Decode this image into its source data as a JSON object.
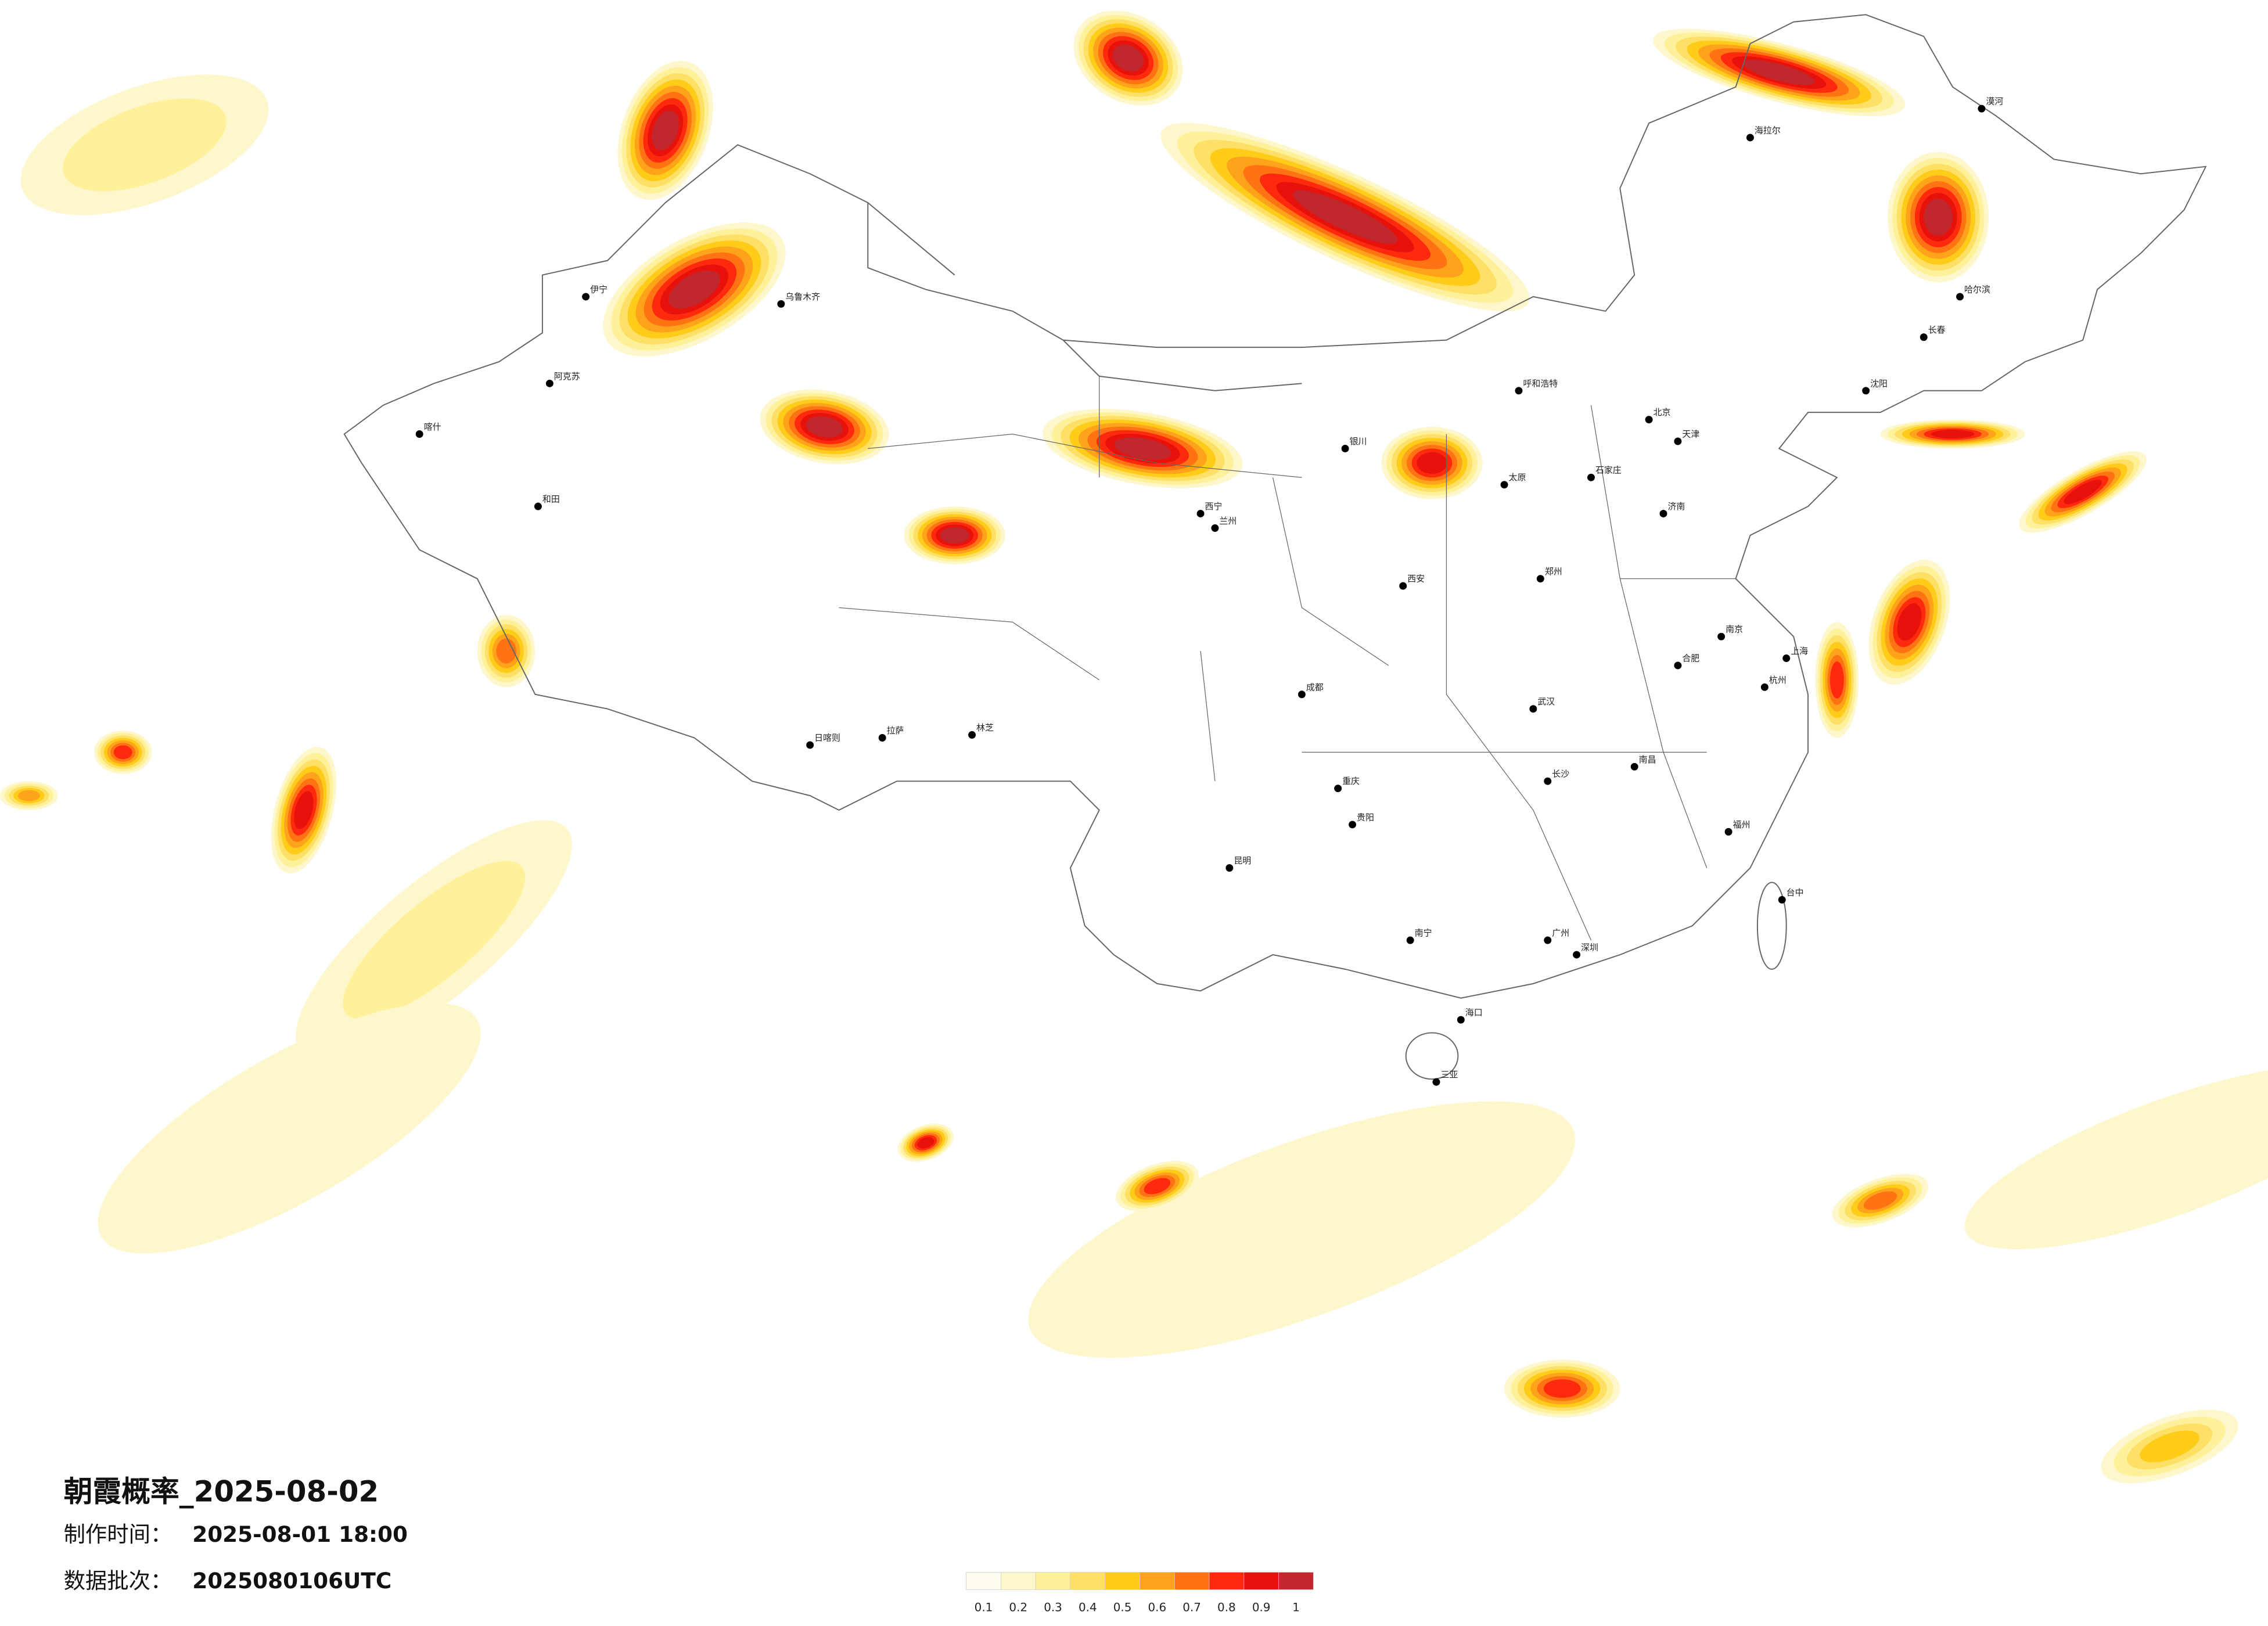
{
  "header": {
    "title": "朝霞概率_2025-08-02"
  },
  "info": [
    {
      "label": "制作时间：",
      "value": "2025-08-01 18:00"
    },
    {
      "label": "数据批次：",
      "value": "2025080106UTC"
    }
  ],
  "legend": {
    "colors": [
      "#fffdf0",
      "#fff7cc",
      "#fff19a",
      "#ffe066",
      "#ffcc1a",
      "#ffa31a",
      "#ff7314",
      "#ff2a0e",
      "#e8120c",
      "#c0282d"
    ],
    "ticks": [
      0.1,
      0.2,
      0.3,
      0.4,
      0.5,
      0.6,
      0.7,
      0.8,
      0.9,
      1
    ]
  },
  "cities": [
    "漠河",
    "海拉尔",
    "哈尔滨",
    "长春",
    "沈阳",
    "北京",
    "天津",
    "呼和浩特",
    "石家庄",
    "太原",
    "济南",
    "郑州",
    "西安",
    "银川",
    "兰州",
    "西宁",
    "乌鲁木齐",
    "伊宁",
    "阿克苏",
    "喀什",
    "和田",
    "拉萨",
    "日喀则",
    "林芝",
    "成都",
    "重庆",
    "贵阳",
    "昆明",
    "南宁",
    "广州",
    "深圳",
    "海口",
    "三亚",
    "长沙",
    "武汉",
    "南昌",
    "合肥",
    "南京",
    "上海",
    "杭州",
    "福州",
    "台中"
  ]
}
